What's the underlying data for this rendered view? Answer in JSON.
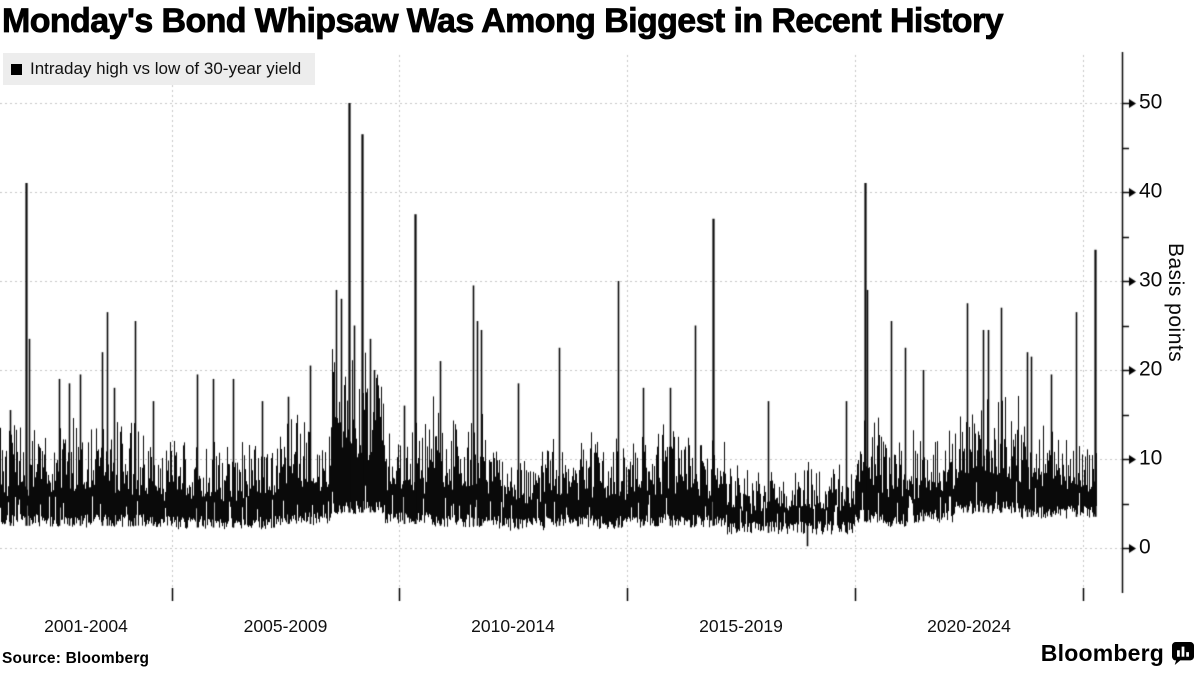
{
  "title": "Monday's Bond Whipsaw Was Among Biggest in Recent History",
  "legend": {
    "label": "Intraday high vs low of 30-year yield",
    "swatch_color": "#000000"
  },
  "source": "Source: Bloomberg",
  "branding": {
    "wordmark": "Bloomberg",
    "icon": "bloomberg-terminal-icon"
  },
  "colors": {
    "background": "#ffffff",
    "series": "#0a0a0a",
    "grid": "#c6c6c6",
    "legend_bg": "#ededed",
    "text": "#000000"
  },
  "seed": 7,
  "chart_data": {
    "type": "line",
    "series_name": "Intraday high vs low of 30-year yield",
    "unit": "basis points",
    "ylabel": "Basis points",
    "y_ticks": [
      0,
      10,
      20,
      30,
      40,
      50
    ],
    "y_minor_ticks": [
      5,
      15,
      25,
      35,
      45
    ],
    "ylim": [
      0,
      52
    ],
    "grid": "dashed, both axes",
    "legend_position": "top-left",
    "x_group_labels": [
      "2001-2004",
      "2005-2009",
      "2010-2014",
      "2015-2019",
      "2020-2024"
    ],
    "x_gridline_years": [
      2005,
      2010,
      2015,
      2020,
      2025
    ],
    "x_range_years": [
      2001,
      2025.3
    ],
    "baseline_band_bp": {
      "typical_low": 2.5,
      "typical_high": 13
    },
    "eras": [
      [
        2001.0,
        2002.6,
        3.0,
        12.5
      ],
      [
        2002.6,
        2004.6,
        3.0,
        13.5
      ],
      [
        2004.6,
        2007.3,
        2.8,
        11.0
      ],
      [
        2007.3,
        2008.5,
        3.2,
        14.0
      ],
      [
        2008.5,
        2009.7,
        4.5,
        21.0
      ],
      [
        2009.7,
        2010.8,
        3.2,
        13.0
      ],
      [
        2010.8,
        2012.2,
        3.0,
        13.5
      ],
      [
        2012.2,
        2013.2,
        2.6,
        10.5
      ],
      [
        2013.2,
        2014.3,
        3.0,
        12.0
      ],
      [
        2014.3,
        2015.1,
        2.8,
        11.0
      ],
      [
        2015.1,
        2016.3,
        3.0,
        12.5
      ],
      [
        2016.3,
        2017.2,
        3.0,
        11.5
      ],
      [
        2017.2,
        2020.0,
        2.2,
        8.5
      ],
      [
        2020.0,
        2020.6,
        3.5,
        14.0
      ],
      [
        2020.6,
        2021.4,
        3.0,
        12.0
      ],
      [
        2021.4,
        2022.2,
        3.5,
        12.5
      ],
      [
        2022.2,
        2023.6,
        4.5,
        15.5
      ],
      [
        2023.6,
        2024.6,
        4.0,
        13.0
      ],
      [
        2024.6,
        2025.4,
        4.0,
        12.0
      ]
    ],
    "spikes": [
      [
        2001.23,
        15.5
      ],
      [
        2001.6,
        41.0
      ],
      [
        2001.67,
        23.5
      ],
      [
        2002.37,
        19.0
      ],
      [
        2002.6,
        18.5
      ],
      [
        2002.85,
        19.5
      ],
      [
        2003.38,
        22.0
      ],
      [
        2003.49,
        26.5
      ],
      [
        2003.65,
        18.0
      ],
      [
        2004.15,
        25.5
      ],
      [
        2004.55,
        16.5
      ],
      [
        2005.56,
        19.5
      ],
      [
        2005.9,
        19.0
      ],
      [
        2006.35,
        19.0
      ],
      [
        2006.98,
        16.5
      ],
      [
        2007.55,
        17.0
      ],
      [
        2008.03,
        20.5
      ],
      [
        2008.62,
        29.0
      ],
      [
        2008.72,
        28.0
      ],
      [
        2008.89,
        50.0
      ],
      [
        2009.0,
        25.0
      ],
      [
        2009.19,
        46.5
      ],
      [
        2009.37,
        23.5
      ],
      [
        2009.45,
        20.0
      ],
      [
        2010.1,
        16.0
      ],
      [
        2010.35,
        37.5
      ],
      [
        2010.9,
        21.0
      ],
      [
        2011.62,
        29.5
      ],
      [
        2011.72,
        25.5
      ],
      [
        2011.8,
        24.5
      ],
      [
        2012.6,
        18.5
      ],
      [
        2013.5,
        22.5
      ],
      [
        2014.8,
        30.0
      ],
      [
        2015.35,
        18.0
      ],
      [
        2015.95,
        18.0
      ],
      [
        2016.5,
        25.0
      ],
      [
        2016.88,
        37.0
      ],
      [
        2018.1,
        16.5
      ],
      [
        2019.8,
        16.5
      ],
      [
        2020.21,
        41.0
      ],
      [
        2020.27,
        29.0
      ],
      [
        2020.8,
        25.5
      ],
      [
        2021.1,
        22.5
      ],
      [
        2021.5,
        20.0
      ],
      [
        2022.45,
        27.5
      ],
      [
        2022.8,
        24.5
      ],
      [
        2022.92,
        24.5
      ],
      [
        2023.2,
        27.0
      ],
      [
        2023.78,
        22.0
      ],
      [
        2023.86,
        21.5
      ],
      [
        2024.3,
        19.5
      ],
      [
        2024.85,
        26.5
      ],
      [
        2025.27,
        33.5
      ]
    ],
    "zero_dip": [
      2018.95,
      0.2
    ]
  }
}
